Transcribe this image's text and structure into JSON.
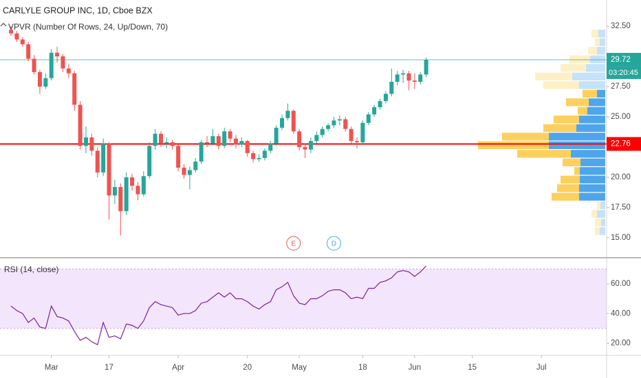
{
  "chart_data": [
    {
      "type": "candlestick",
      "title": "CARLYLE GROUP INC, 1D, Cboe BZX",
      "up_color": "#26a69a",
      "down_color": "#ef5350",
      "candles": [
        [
          32.2,
          32.5,
          31.7,
          31.9
        ],
        [
          31.9,
          32.1,
          31.2,
          31.4
        ],
        [
          31.4,
          31.6,
          30.8,
          31.0
        ],
        [
          31.0,
          31.2,
          29.6,
          29.8
        ],
        [
          29.8,
          30.1,
          28.5,
          28.7
        ],
        [
          28.7,
          28.9,
          26.9,
          27.5
        ],
        [
          27.5,
          28.6,
          27.3,
          28.2
        ],
        [
          28.2,
          30.6,
          28.0,
          30.3
        ],
        [
          30.3,
          30.8,
          29.5,
          30.0
        ],
        [
          30.0,
          30.2,
          28.7,
          29.0
        ],
        [
          29.0,
          29.4,
          28.2,
          28.6
        ],
        [
          28.6,
          28.8,
          25.5,
          26.0
        ],
        [
          26.0,
          26.3,
          22.3,
          22.6
        ],
        [
          22.6,
          24.2,
          22.0,
          23.3
        ],
        [
          23.3,
          23.6,
          21.8,
          22.2
        ],
        [
          22.2,
          22.5,
          20.0,
          20.4
        ],
        [
          20.4,
          23.2,
          20.1,
          22.8
        ],
        [
          22.8,
          22.9,
          16.5,
          18.5
        ],
        [
          18.5,
          19.8,
          17.8,
          19.2
        ],
        [
          19.2,
          19.5,
          15.2,
          17.2
        ],
        [
          17.2,
          20.4,
          16.9,
          20.0
        ],
        [
          20.0,
          20.3,
          18.9,
          19.3
        ],
        [
          19.3,
          19.6,
          18.1,
          18.6
        ],
        [
          18.6,
          20.5,
          18.4,
          20.1
        ],
        [
          20.1,
          22.9,
          19.9,
          22.6
        ],
        [
          22.6,
          24.0,
          22.3,
          23.6
        ],
        [
          23.6,
          23.8,
          22.5,
          22.8
        ],
        [
          22.8,
          23.3,
          22.4,
          22.9
        ],
        [
          22.9,
          23.1,
          22.3,
          22.6
        ],
        [
          22.6,
          22.7,
          20.5,
          20.8
        ],
        [
          20.8,
          21.1,
          19.9,
          20.2
        ],
        [
          20.2,
          20.9,
          19.0,
          20.6
        ],
        [
          20.6,
          21.6,
          20.4,
          21.3
        ],
        [
          21.3,
          23.1,
          21.1,
          22.9
        ],
        [
          22.9,
          23.4,
          22.5,
          22.8
        ],
        [
          22.8,
          24.0,
          22.6,
          23.4
        ],
        [
          23.4,
          23.6,
          22.3,
          22.6
        ],
        [
          22.6,
          24.1,
          22.4,
          23.8
        ],
        [
          23.8,
          24.0,
          22.9,
          23.2
        ],
        [
          23.2,
          23.5,
          22.4,
          22.7
        ],
        [
          22.7,
          23.3,
          22.5,
          23.0
        ],
        [
          23.0,
          23.1,
          21.7,
          22.0
        ],
        [
          22.0,
          22.2,
          21.2,
          21.5
        ],
        [
          21.5,
          21.9,
          21.3,
          21.6
        ],
        [
          21.6,
          22.4,
          21.4,
          22.2
        ],
        [
          22.2,
          23.0,
          22.0,
          22.8
        ],
        [
          22.8,
          24.3,
          22.6,
          24.1
        ],
        [
          24.1,
          25.2,
          23.9,
          24.9
        ],
        [
          24.9,
          26.1,
          24.7,
          25.5
        ],
        [
          25.5,
          25.6,
          23.6,
          23.8
        ],
        [
          23.8,
          24.0,
          22.2,
          22.5
        ],
        [
          22.5,
          22.8,
          21.6,
          22.3
        ],
        [
          22.3,
          23.3,
          22.0,
          23.0
        ],
        [
          23.0,
          23.8,
          22.8,
          23.5
        ],
        [
          23.5,
          24.2,
          23.3,
          24.0
        ],
        [
          24.0,
          24.5,
          23.8,
          24.3
        ],
        [
          24.3,
          25.0,
          24.1,
          24.7
        ],
        [
          24.7,
          25.1,
          24.3,
          24.8
        ],
        [
          24.8,
          25.0,
          23.8,
          24.0
        ],
        [
          24.0,
          24.2,
          22.8,
          23.0
        ],
        [
          23.0,
          23.3,
          22.4,
          22.9
        ],
        [
          22.9,
          24.7,
          22.8,
          24.5
        ],
        [
          24.5,
          25.4,
          24.3,
          25.2
        ],
        [
          25.2,
          26.0,
          25.0,
          25.8
        ],
        [
          25.8,
          26.5,
          25.6,
          26.3
        ],
        [
          26.3,
          27.1,
          26.1,
          26.9
        ],
        [
          26.9,
          29.0,
          26.7,
          27.9
        ],
        [
          27.9,
          28.8,
          27.6,
          28.5
        ],
        [
          28.5,
          28.9,
          27.8,
          28.6
        ],
        [
          28.6,
          28.8,
          27.2,
          28.0
        ],
        [
          28.0,
          28.6,
          27.3,
          27.9
        ],
        [
          27.9,
          28.7,
          27.7,
          28.5
        ],
        [
          28.5,
          29.9,
          28.3,
          29.72
        ]
      ],
      "xlim": [
        -1.91,
        103.3
      ],
      "xticks": [
        {
          "value": 7,
          "label": "Mar"
        },
        17,
        {
          "value": 29,
          "label": "Apr"
        },
        {
          "value": 41,
          "label": "20"
        },
        {
          "value": 50,
          "label": "May"
        },
        {
          "value": 61,
          "label": "18"
        },
        {
          "value": 70,
          "label": "Jun"
        },
        {
          "value": 80,
          "label": "15"
        },
        {
          "value": 92,
          "label": "Jul"
        }
      ],
      "ylim": [
        13.41,
        34.66
      ],
      "yticks": [
        {
          "value": 15,
          "label": "15.00"
        },
        {
          "value": 17.5,
          "label": "17.50"
        },
        {
          "value": 20,
          "label": "20.00"
        },
        {
          "value": 25,
          "label": "25.00"
        },
        {
          "value": 27.5,
          "label": "27.50"
        },
        {
          "value": 32.5,
          "label": "32.50"
        }
      ],
      "last_price": {
        "value": 29.72,
        "color": "#26a69a",
        "countdown": "03:20:45"
      },
      "hlines": [
        {
          "value": 22.76,
          "color": "#ff0000"
        }
      ],
      "events": [
        {
          "label": "E",
          "x": 49,
          "color": "#ef5350"
        },
        {
          "label": "D",
          "x": 56,
          "color": "#42a5f5"
        }
      ],
      "volume_profile": {
        "name": "VPVR (Number Of Rows, 24, Up/Down, 70)",
        "bins": [
          15.2,
          15.91,
          16.62,
          17.33,
          18.04,
          18.75,
          19.46,
          20.17,
          20.88,
          21.59,
          22.3,
          23.01,
          23.72,
          24.43,
          25.14,
          25.85,
          26.56,
          27.27,
          27.98,
          28.69,
          29.4,
          30.11,
          30.82,
          31.53,
          32.24
        ],
        "up": [
          8,
          6,
          12,
          7,
          38,
          38,
          37,
          37,
          36,
          50,
          82,
          82,
          42,
          38,
          26,
          24,
          12,
          38,
          48,
          28,
          22,
          12,
          8,
          10
        ],
        "down": [
          7,
          9,
          8,
          5,
          40,
          32,
          28,
          8,
          26,
          78,
          103,
          68,
          48,
          37,
          14,
          33,
          21,
          52,
          54,
          37,
          30,
          13,
          7,
          10
        ],
        "value_area_rows": [
          4,
          16
        ],
        "up_color": "#4ea5ec",
        "down_color": "#fdd05e",
        "up_color_outside": "#c4e2f8",
        "down_color_outside": "#fef0c6"
      }
    },
    {
      "type": "line",
      "title": "RSI (14, close)",
      "color": "#7b1fa2",
      "values": [
        45,
        42,
        40,
        34,
        37,
        31,
        30,
        45,
        38,
        37,
        35,
        28,
        22,
        24,
        21,
        19,
        34,
        24,
        25,
        23,
        33,
        32,
        30,
        35,
        44,
        48,
        46,
        45,
        44,
        39,
        40,
        40,
        42,
        47,
        48,
        51,
        54,
        51,
        54,
        50,
        50,
        48,
        45,
        43,
        46,
        48,
        56,
        58,
        61,
        52,
        47,
        46,
        50,
        50,
        52,
        55,
        56,
        56,
        54,
        50,
        51,
        50,
        57,
        57,
        61,
        62,
        64,
        68,
        69,
        68,
        65,
        68,
        72
      ],
      "ylim": [
        11.9,
        77.1
      ],
      "yticks": [
        {
          "value": 20,
          "label": "20.00"
        },
        {
          "value": 40,
          "label": "40.00"
        },
        {
          "value": 60,
          "label": "60.00"
        }
      ],
      "band": [
        30,
        70
      ],
      "band_color": "#f3e5fb"
    }
  ]
}
